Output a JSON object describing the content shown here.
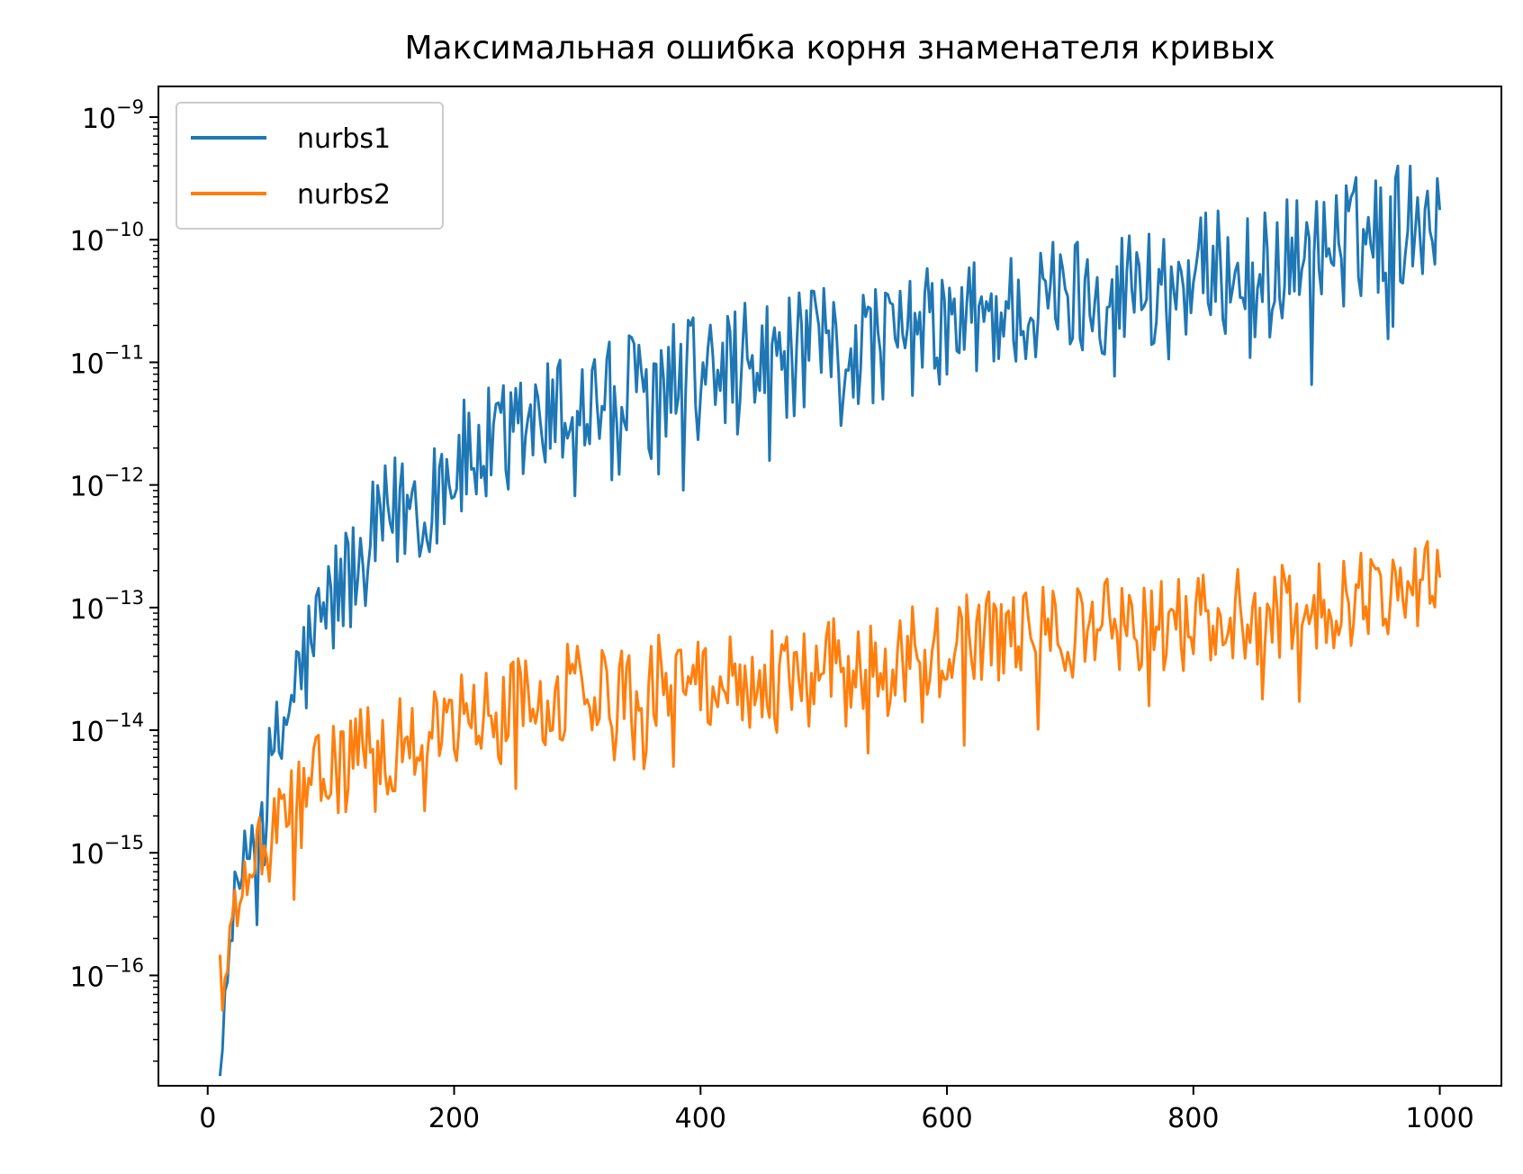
{
  "chart_data": {
    "type": "line",
    "title": "Максимальная ошибка корня знаменателя кривых",
    "xlabel": "",
    "ylabel": "",
    "xscale": "linear",
    "yscale": "log",
    "xlim": [
      -40,
      1050
    ],
    "ylim_log10": [
      -16.9,
      -8.75
    ],
    "xticks": [
      0,
      200,
      400,
      600,
      800,
      1000
    ],
    "xtick_labels": [
      "0",
      "200",
      "400",
      "600",
      "800",
      "1000"
    ],
    "yticks_log10": [
      -16,
      -15,
      -14,
      -13,
      -12,
      -11,
      -10,
      -9
    ],
    "ytick_labels": [
      {
        "base": "10",
        "exp": "−16"
      },
      {
        "base": "10",
        "exp": "−15"
      },
      {
        "base": "10",
        "exp": "−14"
      },
      {
        "base": "10",
        "exp": "−13"
      },
      {
        "base": "10",
        "exp": "−12"
      },
      {
        "base": "10",
        "exp": "−11"
      },
      {
        "base": "10",
        "exp": "−10"
      },
      {
        "base": "10",
        "exp": "−9"
      }
    ],
    "grid": false,
    "legend_position": "top-left",
    "x_range": [
      10,
      1000
    ],
    "x_step": 2,
    "series": [
      {
        "name": "nurbs1",
        "color": "#1f77b4",
        "trend_log10": [
          [
            10,
            -16.2
          ],
          [
            12,
            -16.55
          ],
          [
            20,
            -15.4
          ],
          [
            30,
            -15.0
          ],
          [
            50,
            -14.3
          ],
          [
            70,
            -13.5
          ],
          [
            100,
            -12.8
          ],
          [
            150,
            -12.1
          ],
          [
            200,
            -11.7
          ],
          [
            300,
            -11.2
          ],
          [
            400,
            -10.95
          ],
          [
            500,
            -10.75
          ],
          [
            600,
            -10.55
          ],
          [
            700,
            -10.3
          ],
          [
            800,
            -10.15
          ],
          [
            900,
            -9.95
          ],
          [
            1000,
            -9.6
          ]
        ],
        "noise_log10": 0.65
      },
      {
        "name": "nurbs2",
        "color": "#ff7f0e",
        "trend_log10": [
          [
            10,
            -15.7
          ],
          [
            12,
            -16.25
          ],
          [
            20,
            -15.5
          ],
          [
            30,
            -15.2
          ],
          [
            50,
            -14.8
          ],
          [
            70,
            -14.5
          ],
          [
            100,
            -14.2
          ],
          [
            150,
            -14.0
          ],
          [
            200,
            -13.8
          ],
          [
            300,
            -13.55
          ],
          [
            400,
            -13.45
          ],
          [
            500,
            -13.35
          ],
          [
            600,
            -13.2
          ],
          [
            700,
            -13.05
          ],
          [
            800,
            -13.0
          ],
          [
            900,
            -12.9
          ],
          [
            1000,
            -12.6
          ]
        ],
        "noise_log10": 0.5
      }
    ]
  }
}
